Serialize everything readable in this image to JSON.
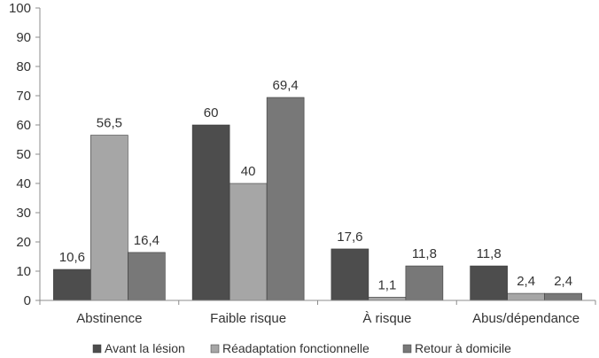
{
  "chart_data": {
    "type": "bar",
    "categories": [
      "Abstinence",
      "Faible risque",
      "À risque",
      "Abus/dépendance"
    ],
    "series": [
      {
        "name": "Avant la lésion",
        "color": "#4d4d4d",
        "values": [
          10.6,
          60,
          17.6,
          11.8
        ],
        "labels": [
          "10,6",
          "60",
          "17,6",
          "11,8"
        ]
      },
      {
        "name": "Réadaptation fonctionnelle",
        "color": "#a6a6a6",
        "values": [
          56.5,
          40,
          1.1,
          2.4
        ],
        "labels": [
          "56,5",
          "40",
          "1,1",
          "2,4"
        ]
      },
      {
        "name": "Retour à domicile",
        "color": "#787878",
        "values": [
          16.4,
          69.4,
          11.8,
          2.4
        ],
        "labels": [
          "16,4",
          "69,4",
          "11,8",
          "2,4"
        ]
      }
    ],
    "ylim": [
      0,
      100
    ],
    "yticks": [
      "0",
      "10",
      "20",
      "30",
      "40",
      "50",
      "60",
      "70",
      "80",
      "90",
      "100"
    ],
    "grid": false,
    "legend": "bottom"
  }
}
